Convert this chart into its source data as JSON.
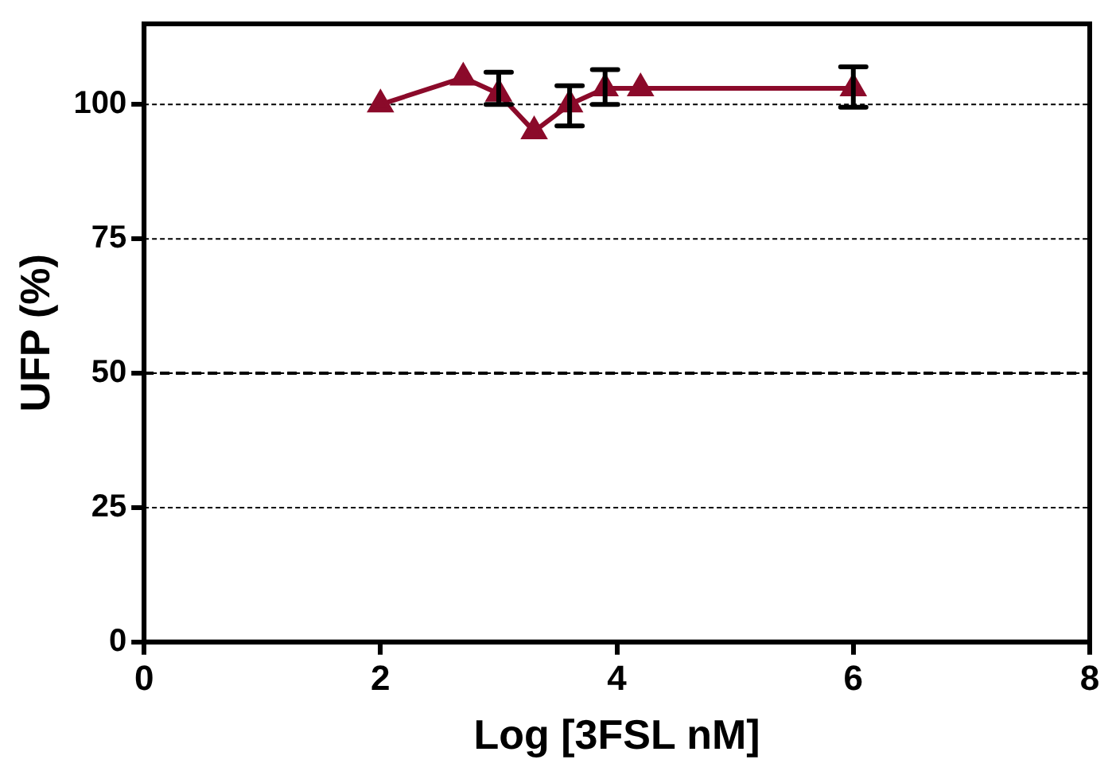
{
  "chart_data": {
    "type": "line",
    "xlabel": "Log [3FSL nM]",
    "ylabel": "UFP (%)",
    "x": [
      2,
      2.7,
      3,
      3.3,
      3.6,
      3.9,
      4.2,
      6
    ],
    "series": [
      {
        "color": "#8b0a2a",
        "values": [
          100,
          105,
          102,
          95,
          100,
          103,
          103,
          103
        ],
        "errors": [
          null,
          null,
          [
            100,
            106
          ],
          null,
          [
            96,
            103.5
          ],
          [
            100,
            106.5
          ],
          null,
          [
            99.5,
            107
          ]
        ]
      }
    ],
    "xlim": [
      0,
      8
    ],
    "xticks": [
      0,
      2,
      4,
      6,
      8
    ],
    "ylim": [
      0,
      115
    ],
    "yticks": [
      0,
      25,
      50,
      75,
      100
    ],
    "grid": "y",
    "marker": "triangle",
    "line_style": "solid",
    "legend": false,
    "ref_lines": [
      {
        "axis": "y",
        "value": 50,
        "line_style": "dashed"
      }
    ]
  }
}
